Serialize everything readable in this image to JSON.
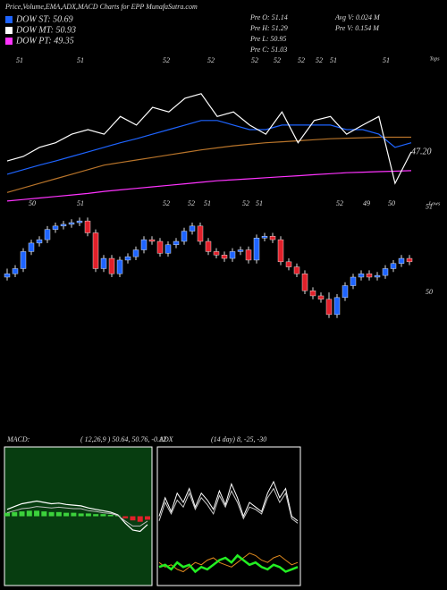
{
  "chart_data": [
    {
      "type": "line",
      "title": "Price,Volume,EMA,ADX,MACD Charts for EPP MunafaSutra.com",
      "legend": [
        {
          "label": "DOW ST: 50.69",
          "color": "#1e64ff"
        },
        {
          "label": "DOW MT: 50.93",
          "color": "#ffffff"
        },
        {
          "label": "DOW PT: 49.35",
          "color": "#ff33ff"
        }
      ],
      "info": [
        "Pre O: 51.14",
        "Pre H: 51.29",
        "Pre L: 50.95",
        "Pre C: 51.03",
        "Avg V: 0.024 M",
        "Pre V: 0.154 M"
      ],
      "tops_label": "Tops",
      "lows_label": "Lows",
      "top_labels": [
        "51",
        "51",
        "52",
        "52",
        "52",
        "52",
        "52",
        "52",
        "51",
        "51"
      ],
      "low_labels": [
        "50",
        "51",
        "52",
        "52",
        "51",
        "52",
        "51",
        "52",
        "49",
        "50"
      ],
      "last_label": "47.20",
      "ylim": [
        46,
        49
      ],
      "series": [
        {
          "color": "#ff33ff",
          "values": [
            46.09,
            46.12,
            46.15,
            46.18,
            46.21,
            46.24,
            46.28,
            46.31,
            46.34,
            46.37,
            46.4,
            46.43,
            46.46,
            46.49,
            46.51,
            46.53,
            46.55,
            46.57,
            46.59,
            46.61,
            46.63,
            46.65,
            46.66,
            46.67,
            46.68,
            46.69
          ]
        },
        {
          "color": "#b8742a",
          "values": [
            46.26,
            46.35,
            46.44,
            46.53,
            46.62,
            46.71,
            46.8,
            46.85,
            46.9,
            46.95,
            47.0,
            47.05,
            47.1,
            47.14,
            47.18,
            47.21,
            47.24,
            47.26,
            47.28,
            47.3,
            47.32,
            47.33,
            47.34,
            47.35,
            47.35,
            47.35
          ]
        },
        {
          "color": "#1e64ff",
          "values": [
            46.62,
            46.71,
            46.8,
            46.88,
            46.97,
            47.06,
            47.15,
            47.24,
            47.32,
            47.41,
            47.5,
            47.59,
            47.68,
            47.68,
            47.59,
            47.5,
            47.5,
            47.59,
            47.59,
            47.59,
            47.59,
            47.5,
            47.5,
            47.41,
            47.15,
            47.24
          ]
        },
        {
          "color": "#ffffff",
          "values": [
            46.88,
            46.97,
            47.15,
            47.24,
            47.41,
            47.5,
            47.41,
            47.76,
            47.59,
            47.94,
            47.85,
            48.12,
            48.21,
            47.76,
            47.85,
            47.59,
            47.41,
            47.85,
            47.24,
            47.68,
            47.76,
            47.41,
            47.59,
            47.76,
            46.44,
            47.06
          ]
        }
      ]
    },
    {
      "type": "candlestick",
      "up_color": "#1e64ff",
      "down_color": "#e0202a",
      "ylim": [
        49.55,
        51.02
      ],
      "yticks": [
        50,
        51
      ],
      "candles": [
        [
          50.18,
          50.28,
          50.14,
          50.22
        ],
        [
          50.22,
          50.32,
          50.18,
          50.28
        ],
        [
          50.28,
          50.52,
          50.24,
          50.48
        ],
        [
          50.48,
          50.62,
          50.44,
          50.58
        ],
        [
          50.58,
          50.66,
          50.54,
          50.62
        ],
        [
          50.62,
          50.78,
          50.58,
          50.74
        ],
        [
          50.74,
          50.82,
          50.7,
          50.78
        ],
        [
          50.78,
          50.84,
          50.74,
          50.8
        ],
        [
          50.8,
          50.86,
          50.76,
          50.82
        ],
        [
          50.82,
          50.88,
          50.78,
          50.84
        ],
        [
          50.84,
          50.88,
          50.66,
          50.7
        ],
        [
          50.7,
          50.74,
          50.24,
          50.28
        ],
        [
          50.28,
          50.44,
          50.24,
          50.4
        ],
        [
          50.4,
          50.44,
          50.18,
          50.22
        ],
        [
          50.22,
          50.42,
          50.18,
          50.38
        ],
        [
          50.38,
          50.46,
          50.34,
          50.42
        ],
        [
          50.42,
          50.54,
          50.38,
          50.5
        ],
        [
          50.5,
          50.66,
          50.46,
          50.62
        ],
        [
          50.62,
          50.66,
          50.56,
          50.6
        ],
        [
          50.6,
          50.64,
          50.42,
          50.46
        ],
        [
          50.46,
          50.6,
          50.42,
          50.56
        ],
        [
          50.56,
          50.64,
          50.52,
          50.6
        ],
        [
          50.6,
          50.76,
          50.56,
          50.72
        ],
        [
          50.72,
          50.82,
          50.68,
          50.78
        ],
        [
          50.78,
          50.82,
          50.56,
          50.6
        ],
        [
          50.6,
          50.64,
          50.44,
          50.48
        ],
        [
          50.48,
          50.52,
          50.4,
          50.44
        ],
        [
          50.44,
          50.48,
          50.36,
          50.4
        ],
        [
          50.4,
          50.52,
          50.36,
          50.48
        ],
        [
          50.48,
          50.54,
          50.44,
          50.5
        ],
        [
          50.5,
          50.54,
          50.34,
          50.38
        ],
        [
          50.38,
          50.68,
          50.34,
          50.64
        ],
        [
          50.64,
          50.7,
          50.6,
          50.66
        ],
        [
          50.66,
          50.7,
          50.58,
          50.62
        ],
        [
          50.62,
          50.66,
          50.32,
          50.36
        ],
        [
          50.36,
          50.4,
          50.26,
          50.3
        ],
        [
          50.3,
          50.34,
          50.18,
          50.22
        ],
        [
          50.22,
          50.26,
          49.98,
          50.02
        ],
        [
          50.02,
          50.06,
          49.92,
          49.96
        ],
        [
          49.96,
          50.0,
          49.88,
          49.92
        ],
        [
          49.92,
          50.0,
          49.7,
          49.74
        ],
        [
          49.74,
          49.98,
          49.7,
          49.94
        ],
        [
          49.94,
          50.12,
          49.9,
          50.08
        ],
        [
          50.08,
          50.22,
          50.04,
          50.18
        ],
        [
          50.18,
          50.26,
          50.14,
          50.22
        ],
        [
          50.22,
          50.26,
          50.14,
          50.18
        ],
        [
          50.18,
          50.24,
          50.14,
          50.2
        ],
        [
          50.2,
          50.32,
          50.16,
          50.28
        ],
        [
          50.28,
          50.38,
          50.24,
          50.34
        ],
        [
          50.34,
          50.44,
          50.3,
          50.4
        ],
        [
          50.4,
          50.44,
          50.32,
          50.36
        ]
      ]
    },
    {
      "type": "macd",
      "title": "MACD:",
      "params": "( 12,26,9 ) 50.64, 50.76, -0.12",
      "ylim": [
        -1,
        1
      ],
      "histogram": [
        0.05,
        0.06,
        0.07,
        0.08,
        0.08,
        0.07,
        0.06,
        0.06,
        0.05,
        0.05,
        0.04,
        0.04,
        0.03,
        0.03,
        0.02,
        0.01,
        -0.03,
        -0.06,
        -0.08,
        -0.05
      ],
      "series": [
        {
          "color": "#ffffff",
          "values": [
            0.1,
            0.14,
            0.18,
            0.2,
            0.22,
            0.2,
            0.18,
            0.19,
            0.17,
            0.16,
            0.15,
            0.12,
            0.1,
            0.08,
            0.06,
            0.02,
            -0.1,
            -0.2,
            -0.22,
            -0.12
          ]
        },
        {
          "color": "#bbbbbb",
          "values": [
            0.05,
            0.08,
            0.11,
            0.12,
            0.14,
            0.13,
            0.12,
            0.13,
            0.12,
            0.11,
            0.11,
            0.08,
            0.07,
            0.05,
            0.04,
            0.01,
            -0.07,
            -0.14,
            -0.14,
            -0.07
          ]
        }
      ]
    },
    {
      "type": "adx",
      "title": "ADX",
      "params": "(14 day) 8, -25, -30",
      "ylim": [
        0,
        60
      ],
      "series": [
        {
          "color": "#ffffff",
          "values": [
            30,
            38,
            32,
            40,
            36,
            42,
            34,
            40,
            37,
            33,
            41,
            35,
            44,
            38,
            30,
            36,
            34,
            32,
            40,
            45,
            38,
            42,
            30,
            28
          ]
        },
        {
          "color": "#cccccc",
          "values": [
            28,
            36,
            31,
            37,
            34,
            40,
            33,
            38,
            35,
            31,
            39,
            34,
            41,
            36,
            29,
            34,
            33,
            31,
            38,
            42,
            36,
            40,
            29,
            27
          ]
        },
        {
          "color": "#e08a1e",
          "values": [
            10,
            8,
            9,
            7,
            6,
            8,
            10,
            9,
            11,
            12,
            10,
            9,
            8,
            10,
            12,
            14,
            13,
            11,
            10,
            12,
            13,
            11,
            9,
            10
          ]
        },
        {
          "color": "#22ee22",
          "values": [
            8,
            9,
            7,
            10,
            8,
            9,
            6,
            8,
            7,
            9,
            11,
            12,
            10,
            13,
            11,
            9,
            10,
            8,
            7,
            9,
            8,
            6,
            7,
            8
          ]
        }
      ]
    }
  ]
}
